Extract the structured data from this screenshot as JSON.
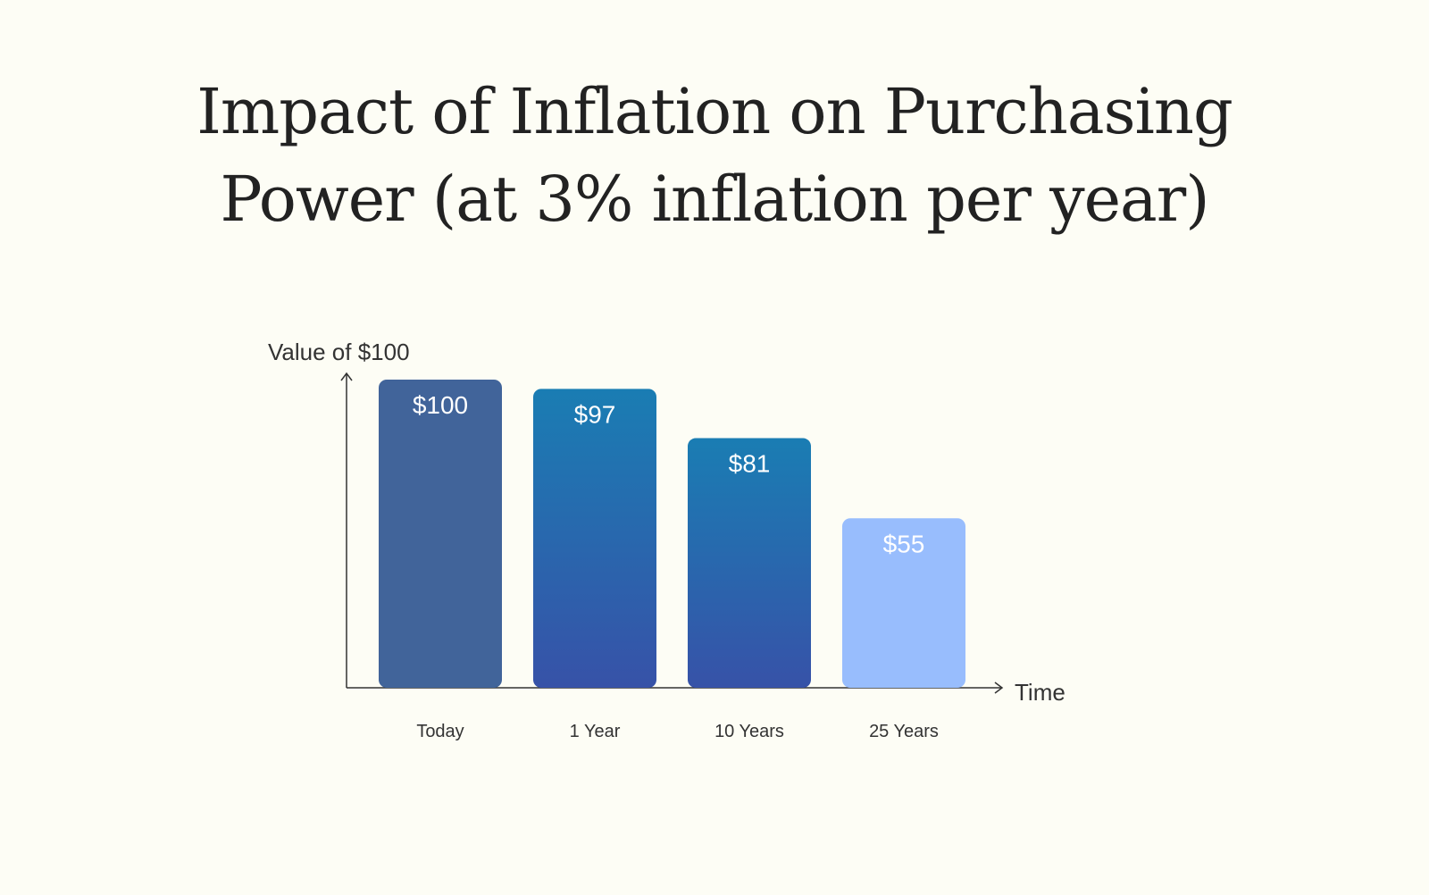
{
  "chart_data": {
    "type": "bar",
    "title_lines": [
      "Impact of Inflation on Purchasing",
      "Power (at 3% inflation per year)"
    ],
    "ylabel": "Value of $100",
    "xlabel": "Time",
    "categories": [
      "Today",
      "1 Year",
      "10 Years",
      "25 Years"
    ],
    "values": [
      100,
      97,
      81,
      55
    ],
    "value_labels": [
      "$100",
      "$97",
      "$81",
      "$55"
    ],
    "ylim": [
      0,
      100
    ],
    "grid": false,
    "legend": "none",
    "bar_fills": [
      {
        "top": "#41649a",
        "bottom": "#41649a"
      },
      {
        "top": "#1a7db3",
        "bottom": "#3752a8"
      },
      {
        "top": "#1a7db3",
        "bottom": "#3752a8"
      },
      {
        "top": "#98bdfd",
        "bottom": "#98bdfd"
      }
    ]
  }
}
